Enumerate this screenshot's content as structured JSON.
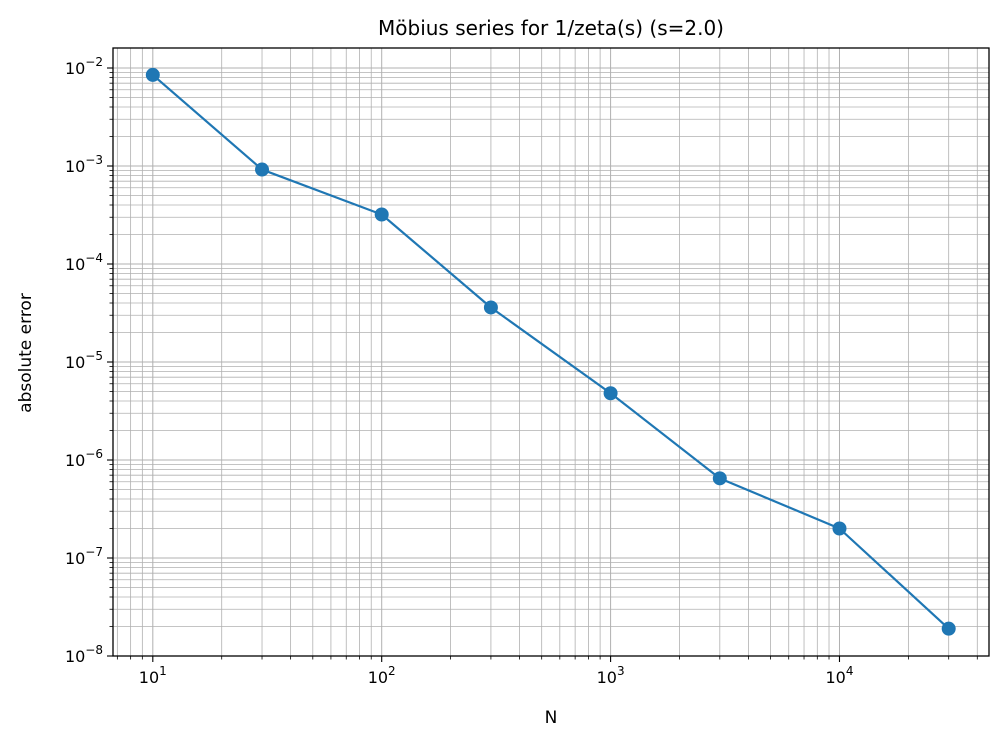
{
  "chart_data": {
    "type": "line",
    "title": "Möbius series for 1/zeta(s) (s=2.0)",
    "xlabel": "N",
    "ylabel": "absolute error",
    "x_scale": "log",
    "y_scale": "log",
    "xlim": [
      6.7,
      45000
    ],
    "ylim": [
      1e-08,
      0.016
    ],
    "grid": "major and minor",
    "x_ticks": [
      10,
      100,
      1000,
      10000
    ],
    "x_tick_labels": [
      {
        "base": "10",
        "exp": "1"
      },
      {
        "base": "10",
        "exp": "2"
      },
      {
        "base": "10",
        "exp": "3"
      },
      {
        "base": "10",
        "exp": "4"
      }
    ],
    "y_ticks": [
      1e-08,
      1e-07,
      1e-06,
      1e-05,
      0.0001,
      0.001,
      0.01
    ],
    "y_tick_labels": [
      {
        "base": "10",
        "exp": "−8"
      },
      {
        "base": "10",
        "exp": "−7"
      },
      {
        "base": "10",
        "exp": "−6"
      },
      {
        "base": "10",
        "exp": "−5"
      },
      {
        "base": "10",
        "exp": "−4"
      },
      {
        "base": "10",
        "exp": "−3"
      },
      {
        "base": "10",
        "exp": "−2"
      }
    ],
    "series": [
      {
        "color": "#1f77b4",
        "marker": "circle",
        "x": [
          10,
          30,
          100,
          300,
          1000,
          3000,
          10000,
          30000
        ],
        "y": [
          0.0085,
          0.00092,
          0.00032,
          3.6e-05,
          4.8e-06,
          6.5e-07,
          2e-07,
          1.9e-08
        ]
      }
    ]
  }
}
